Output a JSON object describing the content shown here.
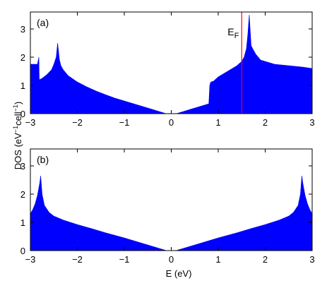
{
  "figure": {
    "ylabel_prefix": "DOS (eV",
    "ylabel_sup1": "−1",
    "ylabel_mid": "cell",
    "ylabel_sup2": "−1",
    "ylabel_suffix": ")",
    "xlabel": "E (eV)"
  },
  "colors": {
    "fill": "#0000ff",
    "fermi": "#ff0000",
    "axis": "#000000"
  },
  "chart_data": [
    {
      "type": "area",
      "panel_label": "(a)",
      "xlim": [
        -3,
        3
      ],
      "ylim": [
        0,
        3.6
      ],
      "xticks": [
        -3,
        -2,
        -1,
        0,
        1,
        2,
        3
      ],
      "yticks": [
        0,
        1,
        2,
        3
      ],
      "show_xtick_labels": true,
      "fermi": {
        "x": 1.5,
        "label_main": "E",
        "label_sub": "F"
      },
      "x": [
        -3.0,
        -2.85,
        -2.82,
        -2.81,
        -2.75,
        -2.65,
        -2.55,
        -2.5,
        -2.45,
        -2.42,
        -2.4,
        -2.38,
        -2.35,
        -2.3,
        -2.2,
        -2.0,
        -1.8,
        -1.6,
        -1.4,
        -1.2,
        -1.0,
        -0.8,
        -0.6,
        -0.4,
        -0.25,
        -0.15,
        -0.1,
        0.1,
        0.15,
        0.25,
        0.4,
        0.6,
        0.8,
        0.82,
        0.84,
        0.9,
        1.0,
        1.2,
        1.4,
        1.5,
        1.55,
        1.6,
        1.63,
        1.66,
        1.7,
        1.8,
        1.9,
        2.0,
        2.2,
        2.5,
        2.8,
        3.0
      ],
      "y": [
        1.75,
        1.75,
        2.0,
        1.2,
        1.25,
        1.38,
        1.55,
        1.75,
        2.0,
        2.5,
        2.2,
        1.9,
        1.7,
        1.55,
        1.35,
        1.12,
        0.95,
        0.8,
        0.67,
        0.55,
        0.45,
        0.35,
        0.25,
        0.15,
        0.07,
        0.02,
        0.0,
        0.0,
        0.02,
        0.07,
        0.15,
        0.25,
        0.35,
        1.0,
        1.12,
        1.15,
        1.3,
        1.5,
        1.7,
        1.85,
        2.0,
        2.3,
        2.8,
        3.5,
        2.4,
        2.1,
        1.9,
        1.85,
        1.75,
        1.7,
        1.65,
        1.6
      ]
    },
    {
      "type": "area",
      "panel_label": "(b)",
      "xlim": [
        -3,
        3
      ],
      "ylim": [
        0,
        3.6
      ],
      "xticks": [
        -3,
        -2,
        -1,
        0,
        1,
        2,
        3
      ],
      "yticks": [
        0,
        1,
        2,
        3
      ],
      "show_xtick_labels": true,
      "x": [
        -3.0,
        -2.95,
        -2.9,
        -2.85,
        -2.8,
        -2.78,
        -2.75,
        -2.7,
        -2.6,
        -2.5,
        -2.3,
        -2.0,
        -1.7,
        -1.4,
        -1.0,
        -0.6,
        -0.3,
        -0.1,
        0.1,
        0.3,
        0.6,
        1.0,
        1.4,
        1.7,
        2.0,
        2.3,
        2.5,
        2.6,
        2.7,
        2.75,
        2.78,
        2.8,
        2.85,
        2.9,
        2.95,
        3.0
      ],
      "y": [
        1.3,
        1.45,
        1.65,
        1.95,
        2.4,
        2.65,
        2.0,
        1.6,
        1.35,
        1.22,
        1.08,
        0.92,
        0.78,
        0.63,
        0.45,
        0.25,
        0.1,
        0.0,
        0.0,
        0.1,
        0.25,
        0.45,
        0.63,
        0.78,
        0.92,
        1.08,
        1.22,
        1.35,
        1.6,
        2.0,
        2.65,
        2.4,
        1.95,
        1.65,
        1.45,
        1.3
      ]
    }
  ]
}
